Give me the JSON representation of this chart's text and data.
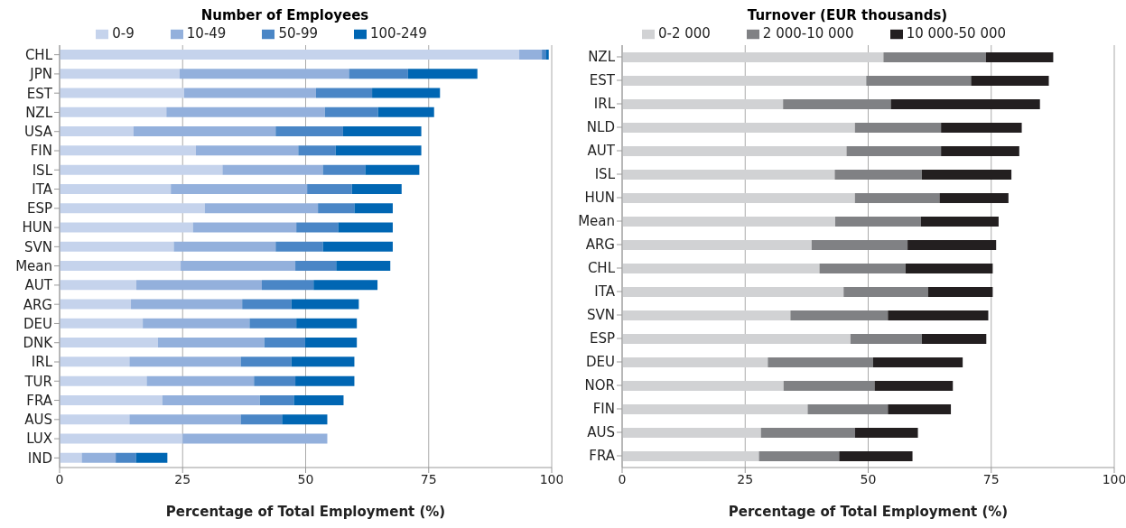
{
  "chart_data": [
    {
      "type": "bar",
      "orientation": "horizontal",
      "stacked": true,
      "title": "Number of Employees",
      "xlabel": "Percentage of Total Employment (%)",
      "categories": [
        "CHL",
        "JPN",
        "EST",
        "NZL",
        "USA",
        "FIN",
        "ISL",
        "ITA",
        "ESP",
        "HUN",
        "SVN",
        "Mean",
        "AUT",
        "ARG",
        "DEU",
        "DNK",
        "IRL",
        "TUR",
        "FRA",
        "AUS",
        "LUX",
        "IND"
      ],
      "series": [
        {
          "name": "0-9",
          "color": "#c5d3ec",
          "values": [
            93.4,
            24.4,
            25.3,
            21.7,
            15.0,
            27.7,
            33.1,
            22.6,
            29.5,
            27.1,
            23.2,
            24.6,
            15.6,
            14.5,
            16.9,
            20.0,
            14.2,
            17.7,
            20.9,
            14.2,
            25.0,
            4.5
          ]
        },
        {
          "name": "10-49",
          "color": "#93b0dc",
          "values": [
            4.6,
            34.4,
            26.8,
            32.2,
            28.9,
            20.8,
            20.4,
            27.7,
            23.0,
            21.0,
            20.7,
            23.3,
            25.5,
            22.6,
            21.7,
            21.6,
            22.6,
            21.8,
            19.8,
            22.6,
            29.4,
            6.9
          ]
        },
        {
          "name": "50-99",
          "color": "#4a86c6",
          "values": [
            0.9,
            12.0,
            11.4,
            10.8,
            13.7,
            7.6,
            8.6,
            9.1,
            7.4,
            8.5,
            9.6,
            8.3,
            10.5,
            10.0,
            9.5,
            8.3,
            10.3,
            8.4,
            6.9,
            8.4,
            null,
            4.1
          ]
        },
        {
          "name": "100-249",
          "color": "#0066b3",
          "values": [
            0.5,
            14.1,
            13.8,
            11.4,
            15.9,
            17.4,
            11.0,
            10.1,
            7.8,
            11.1,
            14.2,
            11.0,
            13.0,
            13.7,
            12.3,
            10.5,
            12.8,
            12.0,
            10.1,
            9.2,
            null,
            6.4
          ]
        }
      ],
      "xlim": [
        0,
        100
      ],
      "xticks": [
        0,
        25,
        50,
        75,
        100
      ],
      "grid": "x",
      "legend": "top"
    },
    {
      "type": "bar",
      "orientation": "horizontal",
      "stacked": true,
      "title": "Turnover (EUR thousands)",
      "xlabel": "Percentage of Total Employment (%)",
      "categories": [
        "NZL",
        "EST",
        "IRL",
        "NLD",
        "AUT",
        "ISL",
        "HUN",
        "Mean",
        "ARG",
        "CHL",
        "ITA",
        "SVN",
        "ESP",
        "DEU",
        "NOR",
        "FIN",
        "AUS",
        "FRA"
      ],
      "series": [
        {
          "name": "0-2 000",
          "color": "#d1d2d4",
          "values": [
            53.1,
            49.6,
            32.7,
            47.3,
            45.6,
            43.2,
            47.3,
            43.3,
            38.5,
            40.1,
            45.0,
            34.2,
            46.4,
            29.6,
            32.8,
            37.7,
            28.2,
            27.8
          ]
        },
        {
          "name": "2 000-10 000",
          "color": "#808184",
          "values": [
            20.8,
            21.3,
            21.9,
            17.5,
            19.2,
            17.7,
            17.2,
            17.4,
            19.5,
            17.5,
            17.2,
            19.8,
            14.5,
            21.4,
            18.5,
            16.3,
            19.1,
            16.3
          ]
        },
        {
          "name": "10 000-50 000",
          "color": "#231f20",
          "values": [
            13.7,
            15.8,
            30.3,
            16.4,
            15.9,
            18.2,
            14.0,
            15.8,
            18.0,
            17.7,
            13.1,
            20.4,
            13.1,
            18.2,
            15.9,
            12.8,
            12.8,
            14.9
          ]
        }
      ],
      "xlim": [
        0,
        100
      ],
      "xticks": [
        0,
        25,
        50,
        75,
        100
      ],
      "grid": "x",
      "legend": "top"
    }
  ]
}
